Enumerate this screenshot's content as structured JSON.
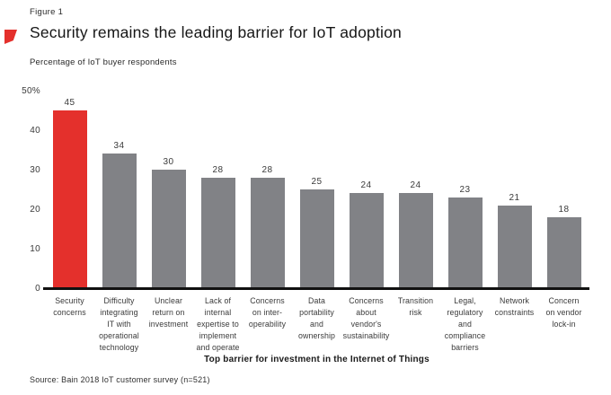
{
  "header": {
    "figure_label": "Figure 1",
    "title": "Security remains the leading barrier for IoT adoption",
    "subtitle": "Percentage of IoT buyer respondents"
  },
  "footer": {
    "source": "Source: Bain 2018 IoT customer survey (n=521)"
  },
  "colors": {
    "highlight_red": "#e4302c",
    "bar_gray": "#818286",
    "axis_black": "#111111",
    "text_dark": "#3a3a3a"
  },
  "chart_data": {
    "type": "bar",
    "title": "Security remains the leading barrier for IoT adoption",
    "subtitle": "Percentage of IoT buyer respondents",
    "xlabel": "Top barrier for investment in the Internet of Things",
    "ylabel": "Percentage of IoT buyer respondents",
    "categories": [
      "Security concerns",
      "Difficulty integrating IT with operational technology",
      "Unclear return on investment",
      "Lack of internal expertise to implement and operate",
      "Concerns on inter-operability",
      "Data portability and ownership",
      "Concerns about vendor's sustainability",
      "Transition risk",
      "Legal, regulatory and compliance barriers",
      "Network constraints",
      "Concern on vendor lock-in"
    ],
    "values": [
      45,
      34,
      30,
      28,
      28,
      25,
      24,
      24,
      23,
      21,
      18
    ],
    "highlight_index": 0,
    "highlighted_category": "Security concerns",
    "ylim": [
      0,
      50
    ],
    "yticks": [
      {
        "value": 50,
        "label": "50%"
      },
      {
        "value": 40,
        "label": "40"
      },
      {
        "value": 30,
        "label": "30"
      },
      {
        "value": 20,
        "label": "20"
      },
      {
        "value": 10,
        "label": "10"
      },
      {
        "value": 0,
        "label": "0"
      }
    ],
    "grid": false,
    "legend": null
  },
  "x_labels_wrapped": [
    "Security\nconcerns",
    "Difficulty\nintegrating\nIT with\noperational\ntechnology",
    "Unclear\nreturn on\ninvestment",
    "Lack of\ninternal\nexpertise to\nimplement\nand operate",
    "Concerns\non inter-\noperability",
    "Data\nportability\nand\nownership",
    "Concerns\nabout\nvendor's\nsustainability",
    "Transition\nrisk",
    "Legal,\nregulatory\nand\ncompliance\nbarriers",
    "Network\nconstraints",
    "Concern\non vendor\nlock-in"
  ]
}
